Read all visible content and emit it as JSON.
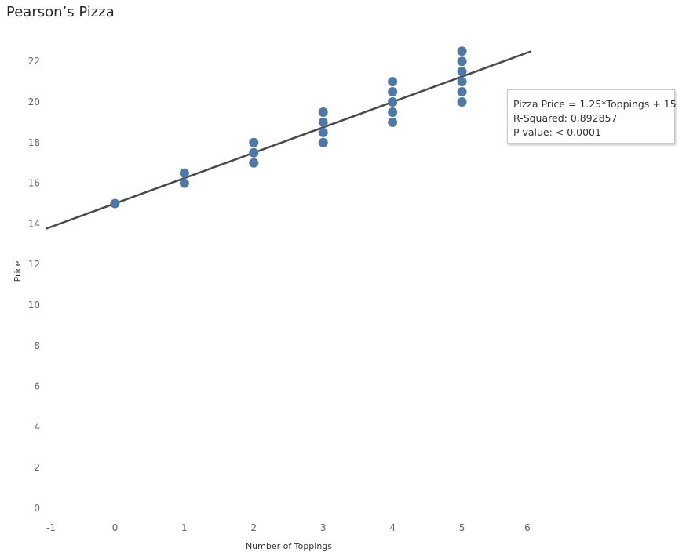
{
  "chart_data": {
    "type": "scatter",
    "title": "Pearson’s Pizza",
    "xlabel": "Number of Toppings",
    "ylabel": "Price",
    "xlim": [
      -1,
      6
    ],
    "ylim": [
      0,
      23.5
    ],
    "x_ticks": [
      "-1",
      "0",
      "1",
      "2",
      "3",
      "4",
      "5",
      "6"
    ],
    "y_ticks": [
      "0",
      "2",
      "4",
      "6",
      "8",
      "10",
      "12",
      "14",
      "16",
      "18",
      "20",
      "22"
    ],
    "grid": false,
    "points": [
      {
        "x": 0,
        "y": 15
      },
      {
        "x": 1,
        "y": 16
      },
      {
        "x": 1,
        "y": 16.5
      },
      {
        "x": 2,
        "y": 17
      },
      {
        "x": 2,
        "y": 17.5
      },
      {
        "x": 2,
        "y": 18
      },
      {
        "x": 3,
        "y": 18
      },
      {
        "x": 3,
        "y": 18.5
      },
      {
        "x": 3,
        "y": 19
      },
      {
        "x": 3,
        "y": 19.5
      },
      {
        "x": 4,
        "y": 19
      },
      {
        "x": 4,
        "y": 19.5
      },
      {
        "x": 4,
        "y": 20
      },
      {
        "x": 4,
        "y": 20.5
      },
      {
        "x": 4,
        "y": 21
      },
      {
        "x": 5,
        "y": 20
      },
      {
        "x": 5,
        "y": 20.5
      },
      {
        "x": 5,
        "y": 21
      },
      {
        "x": 5,
        "y": 21.5
      },
      {
        "x": 5,
        "y": 22
      },
      {
        "x": 5,
        "y": 22.5
      }
    ],
    "trend_line": {
      "slope": 1.25,
      "intercept": 15,
      "x_range": [
        -1,
        6
      ]
    },
    "point_color": "#4e79a7",
    "line_color": "#4a4a4a",
    "annotation": {
      "equation": "Pizza Price = 1.25*Toppings + 15",
      "r_squared": "R-Squared: 0.892857",
      "p_value": "P-value: < 0.0001"
    }
  }
}
